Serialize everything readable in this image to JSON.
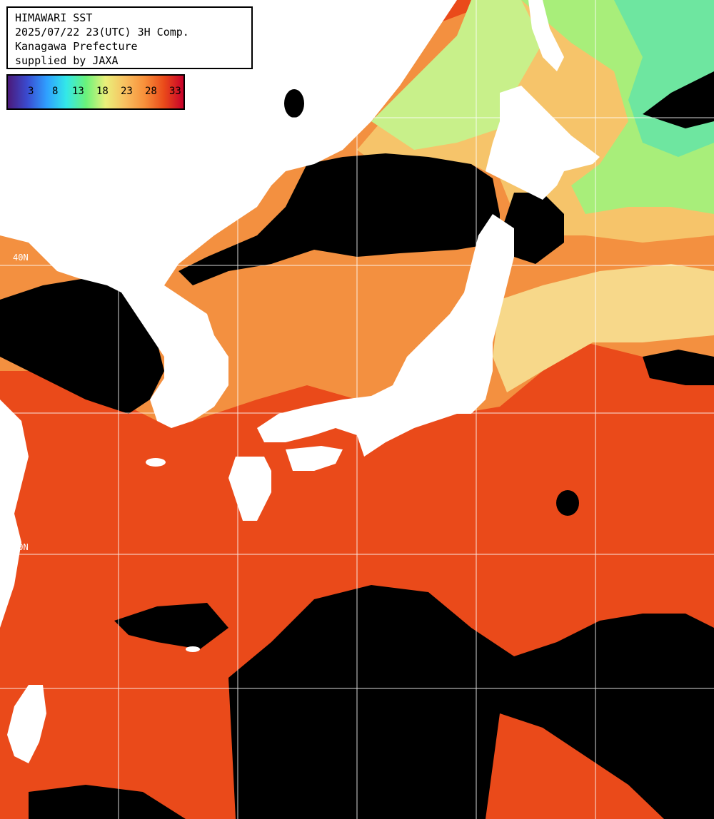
{
  "header": {
    "title": "HIMAWARI SST",
    "datetime": "2025/07/22 23(UTC) 3H Comp.",
    "region": "Kanagawa Prefecture",
    "credit": "supplied by JAXA"
  },
  "colorbar": {
    "ticks": [
      "3",
      "8",
      "13",
      "18",
      "23",
      "28",
      "33"
    ],
    "colors": [
      "#4b1a7a",
      "#3a4bd0",
      "#2fa0ff",
      "#33e8e8",
      "#6af27a",
      "#e9f07a",
      "#f8c060",
      "#f8903a",
      "#ea4a1a",
      "#c8002a"
    ]
  },
  "grid_labels": [
    "40N",
    "30N"
  ],
  "colors": {
    "land": "#ffffff",
    "cloud": "#000000",
    "warm_sea": "#ea4a1a",
    "mid_sea": "#f8903a",
    "cool_sea": "#f6d46a",
    "cold_sea": "#8ef28a",
    "grid": "#ffffff"
  }
}
